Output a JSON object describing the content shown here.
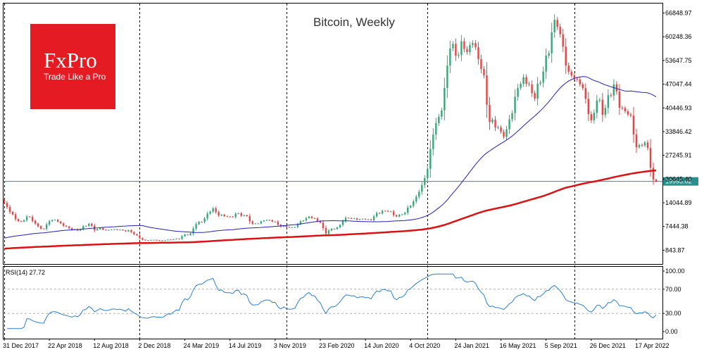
{
  "chart_data": {
    "type": "candlestick",
    "title": "Bitcoin, Weekly",
    "logo": {
      "main": "FxPro",
      "sub": "Trade Like a Pro"
    },
    "last_price": {
      "value": 19993.02,
      "label": "19993.02",
      "color": "#2a8f8f"
    },
    "y_ticks": [
      "66848.97",
      "60248.36",
      "53647.75",
      "47047.44",
      "40446.93",
      "33846.42",
      "27245.91",
      "20645.40",
      "14044.89",
      "7444.38",
      "843.87"
    ],
    "y_tick_values": [
      66848.97,
      60248.36,
      53647.75,
      47047.44,
      40446.93,
      33846.42,
      27245.91,
      20645.4,
      14044.89,
      7444.38,
      843.87
    ],
    "ylim": [
      -3000,
      69500
    ],
    "x_ticks": [
      {
        "label": "31 Dec 2017",
        "week": 0
      },
      {
        "label": "22 Apr 2018",
        "week": 16
      },
      {
        "label": "12 Aug 2018",
        "week": 32
      },
      {
        "label": "2 Dec 2018",
        "week": 48
      },
      {
        "label": "24 Mar 2019",
        "week": 64
      },
      {
        "label": "14 Jul 2019",
        "week": 80
      },
      {
        "label": "3 Nov 2019",
        "week": 96
      },
      {
        "label": "23 Feb 2020",
        "week": 112
      },
      {
        "label": "14 Jun 2020",
        "week": 128
      },
      {
        "label": "4 Oct 2020",
        "week": 144
      },
      {
        "label": "24 Jan 2021",
        "week": 160
      },
      {
        "label": "16 May 2021",
        "week": 176
      },
      {
        "label": "5 Sep 2021",
        "week": 192
      },
      {
        "label": "26 Dec 2021",
        "week": 208
      },
      {
        "label": "17 Apr 2022",
        "week": 224
      }
    ],
    "vertical_separators_weeks": [
      0,
      48,
      100,
      150,
      202
    ],
    "weeks_total": 232,
    "up_color": "#3aa57a",
    "down_color": "#e04848",
    "ma_fast": {
      "period": 50,
      "color": "#2020c0"
    },
    "ma_slow": {
      "period": 200,
      "color": "#dd1111"
    },
    "close_anchors": [
      [
        0,
        14000
      ],
      [
        2,
        11500
      ],
      [
        4,
        9500
      ],
      [
        6,
        8800
      ],
      [
        8,
        10200
      ],
      [
        10,
        9000
      ],
      [
        12,
        7500
      ],
      [
        14,
        6800
      ],
      [
        16,
        8900
      ],
      [
        18,
        9300
      ],
      [
        20,
        8300
      ],
      [
        22,
        7400
      ],
      [
        24,
        6500
      ],
      [
        26,
        6300
      ],
      [
        28,
        7500
      ],
      [
        30,
        8200
      ],
      [
        32,
        6400
      ],
      [
        34,
        7000
      ],
      [
        36,
        6400
      ],
      [
        38,
        6600
      ],
      [
        40,
        6500
      ],
      [
        42,
        6350
      ],
      [
        44,
        6400
      ],
      [
        46,
        5300
      ],
      [
        48,
        4200
      ],
      [
        50,
        3600
      ],
      [
        52,
        3700
      ],
      [
        54,
        3600
      ],
      [
        56,
        3500
      ],
      [
        58,
        3800
      ],
      [
        60,
        3900
      ],
      [
        62,
        4000
      ],
      [
        64,
        5200
      ],
      [
        66,
        5500
      ],
      [
        68,
        8100
      ],
      [
        70,
        8700
      ],
      [
        72,
        11000
      ],
      [
        74,
        12500
      ],
      [
        76,
        10500
      ],
      [
        78,
        10300
      ],
      [
        80,
        10200
      ],
      [
        82,
        11000
      ],
      [
        84,
        10400
      ],
      [
        86,
        10300
      ],
      [
        88,
        8200
      ],
      [
        90,
        8300
      ],
      [
        92,
        9100
      ],
      [
        94,
        9200
      ],
      [
        96,
        8800
      ],
      [
        98,
        7400
      ],
      [
        100,
        7300
      ],
      [
        102,
        7200
      ],
      [
        104,
        8100
      ],
      [
        106,
        9100
      ],
      [
        108,
        10200
      ],
      [
        110,
        9700
      ],
      [
        112,
        8500
      ],
      [
        114,
        5400
      ],
      [
        116,
        6800
      ],
      [
        118,
        7200
      ],
      [
        120,
        8900
      ],
      [
        122,
        9800
      ],
      [
        124,
        9700
      ],
      [
        126,
        9500
      ],
      [
        128,
        9400
      ],
      [
        130,
        9200
      ],
      [
        132,
        11200
      ],
      [
        134,
        11800
      ],
      [
        136,
        11600
      ],
      [
        138,
        10600
      ],
      [
        140,
        10700
      ],
      [
        142,
        11300
      ],
      [
        144,
        13200
      ],
      [
        146,
        15700
      ],
      [
        148,
        19000
      ],
      [
        150,
        23500
      ],
      [
        152,
        33000
      ],
      [
        154,
        38000
      ],
      [
        156,
        46000
      ],
      [
        158,
        57000
      ],
      [
        160,
        55000
      ],
      [
        162,
        59000
      ],
      [
        164,
        56000
      ],
      [
        166,
        58500
      ],
      [
        168,
        54000
      ],
      [
        170,
        49500
      ],
      [
        172,
        36500
      ],
      [
        174,
        35000
      ],
      [
        176,
        33800
      ],
      [
        178,
        34500
      ],
      [
        180,
        39000
      ],
      [
        182,
        46000
      ],
      [
        184,
        49000
      ],
      [
        186,
        47000
      ],
      [
        188,
        43000
      ],
      [
        190,
        47500
      ],
      [
        192,
        55000
      ],
      [
        194,
        61500
      ],
      [
        196,
        63000
      ],
      [
        198,
        57500
      ],
      [
        200,
        50500
      ],
      [
        202,
        48500
      ],
      [
        204,
        47000
      ],
      [
        206,
        43000
      ],
      [
        208,
        37000
      ],
      [
        210,
        42500
      ],
      [
        212,
        38500
      ],
      [
        214,
        44000
      ],
      [
        216,
        47000
      ],
      [
        218,
        40500
      ],
      [
        220,
        39500
      ],
      [
        222,
        38300
      ],
      [
        224,
        29500
      ],
      [
        226,
        30000
      ],
      [
        228,
        29300
      ],
      [
        230,
        20500
      ],
      [
        231,
        20000
      ]
    ],
    "rsi": {
      "label": "RSI(14) 27.72",
      "period": 14,
      "last_value": 27.72,
      "levels": [
        30,
        70
      ],
      "y_ticks": [
        "100.00",
        "70.00",
        "30.00",
        "0.00"
      ],
      "y_tick_values": [
        100,
        70,
        30,
        0
      ],
      "color": "#2a7fd4"
    }
  }
}
